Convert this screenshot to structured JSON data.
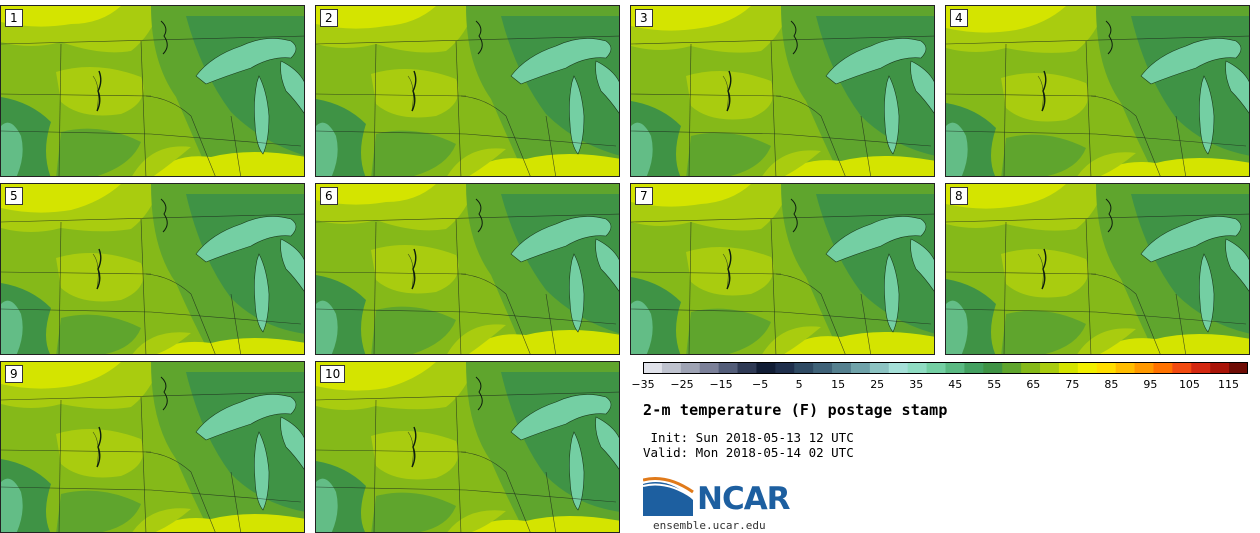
{
  "panels": [
    {
      "label": "1"
    },
    {
      "label": "2"
    },
    {
      "label": "3"
    },
    {
      "label": "4"
    },
    {
      "label": "5"
    },
    {
      "label": "6"
    },
    {
      "label": "7"
    },
    {
      "label": "8"
    },
    {
      "label": "9"
    },
    {
      "label": "10"
    }
  ],
  "colorbar": {
    "tick_labels": [
      "−35",
      "−25",
      "−15",
      "−5",
      "5",
      "15",
      "25",
      "35",
      "45",
      "55",
      "65",
      "75",
      "85",
      "95",
      "105",
      "115"
    ],
    "colors": [
      "#e0e2ea",
      "#bfc3cf",
      "#9ea3b4",
      "#7b8099",
      "#535d79",
      "#2f3a55",
      "#111d35",
      "#1f2f4c",
      "#2f4a63",
      "#3f6278",
      "#55808f",
      "#6fa2a9",
      "#8cc3c2",
      "#a5e0d8",
      "#8fdcc2",
      "#74cfa3",
      "#5ab982",
      "#43a060",
      "#3f9345",
      "#5fa52d",
      "#85b919",
      "#a9cc0f",
      "#d4e400",
      "#f2f000",
      "#ffde00",
      "#ffbd00",
      "#ff9900",
      "#ff7200",
      "#f24a10",
      "#d42810",
      "#a91408",
      "#6e0c05"
    ],
    "min": -35,
    "max": 120,
    "map_colors": {
      "dark_green": "#3f9345",
      "mid_green": "#5fa52d",
      "light_green": "#85b919",
      "yellow_green": "#a9cc0f",
      "yellow": "#d4e400",
      "lake": "#74cfa3"
    }
  },
  "info": {
    "title": "2-m temperature (F) postage stamp",
    "init_line": " Init: Sun 2018-05-13 12 UTC",
    "valid_line": "Valid: Mon 2018-05-14 02 UTC",
    "logo_text": "NCAR",
    "site": "ensemble.ucar.edu"
  }
}
